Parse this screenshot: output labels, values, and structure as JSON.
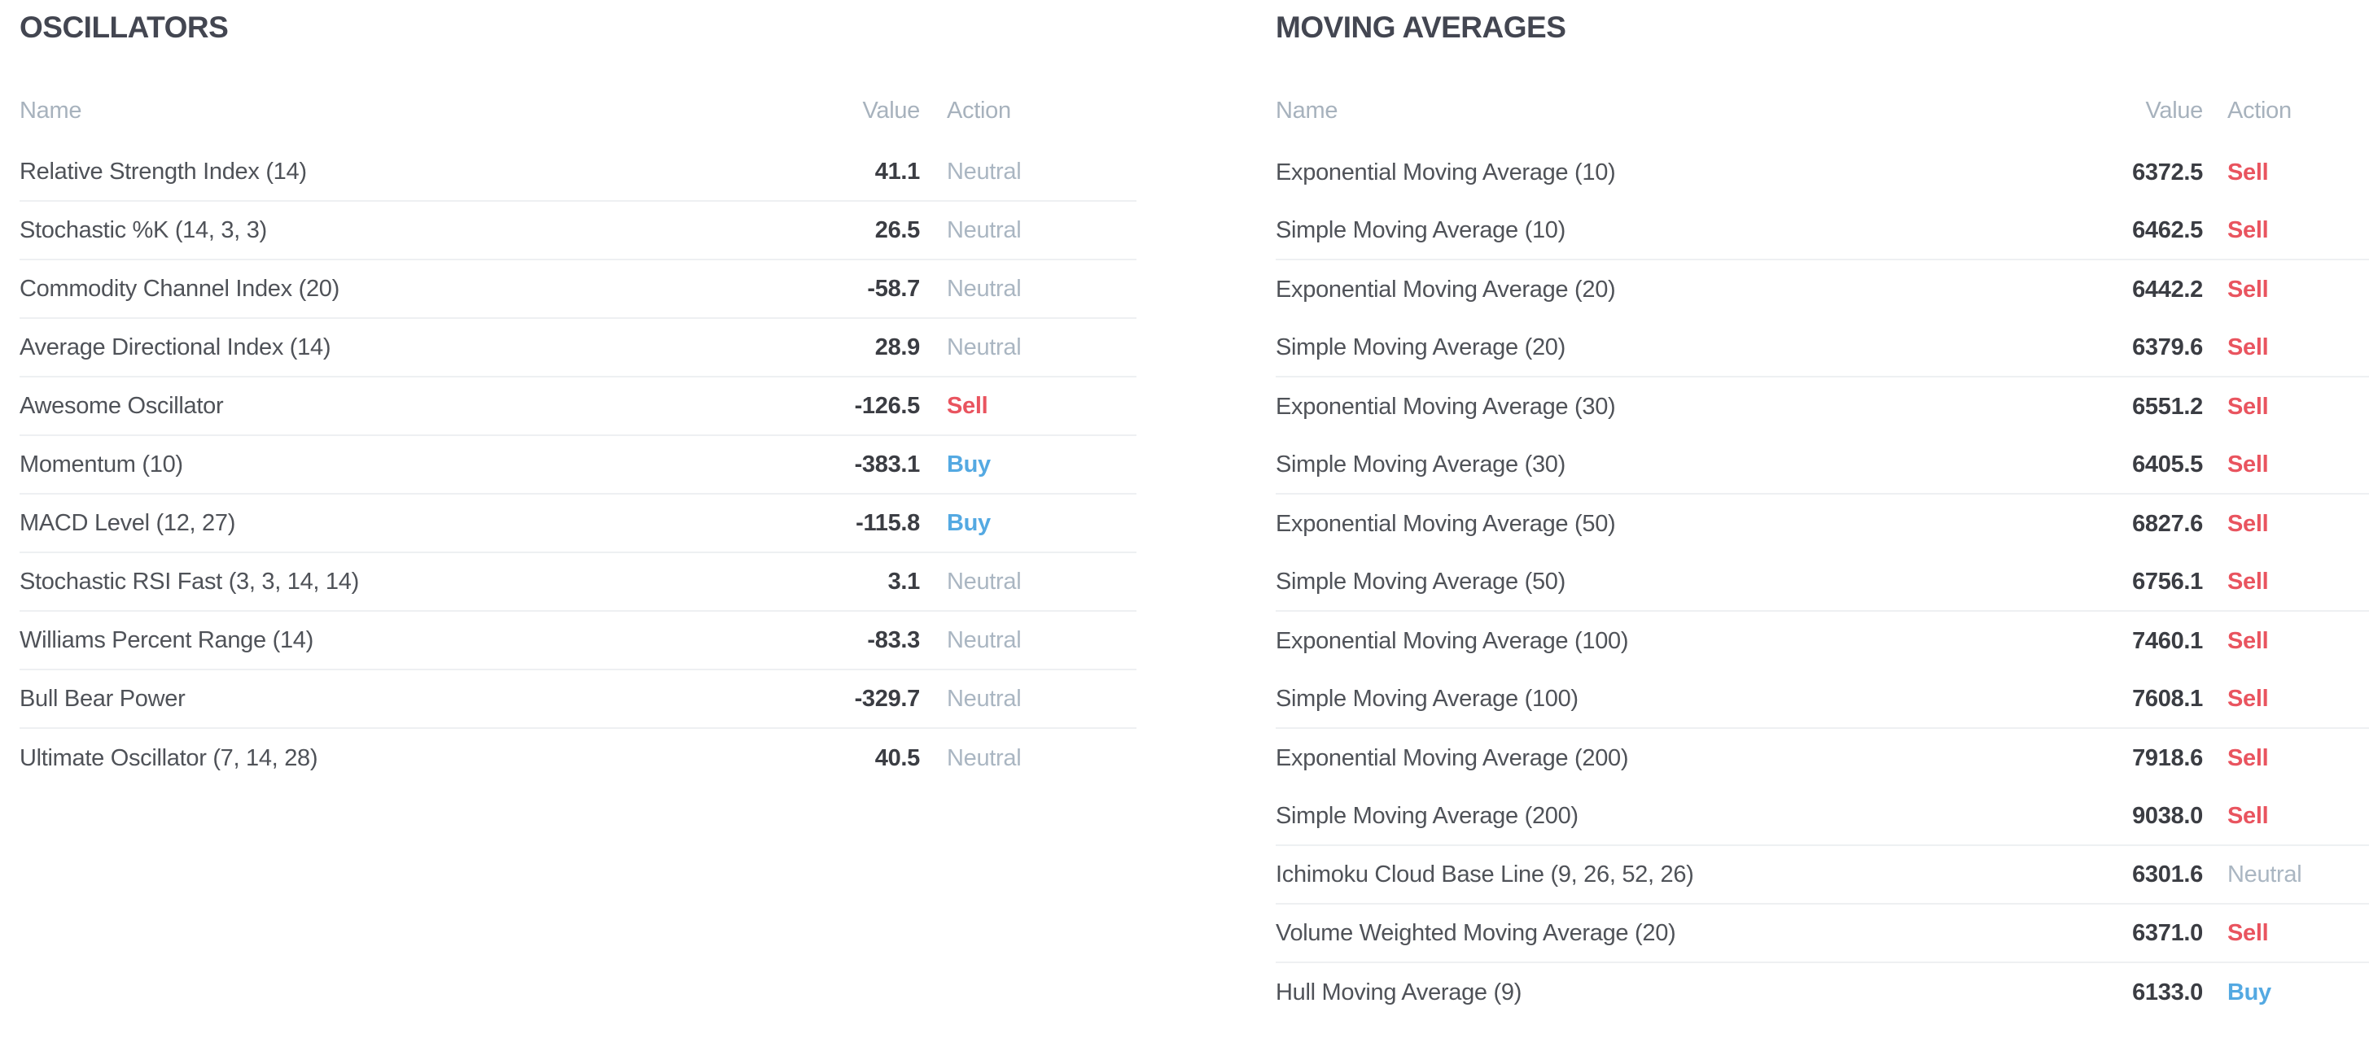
{
  "colors": {
    "background": "#ffffff",
    "title_text": "#434651",
    "indicator_name_text": "#4f5258",
    "value_text": "#3b3d43",
    "column_header_text": "#a7b2bd",
    "action_neutral": "#aab6c2",
    "action_sell": "#e9545f",
    "action_buy": "#54a9e2",
    "row_divider": "#eef0f2"
  },
  "tables": [
    {
      "id": "oscillators",
      "title": "OSCILLATORS",
      "columns": {
        "name": "Name",
        "value": "Value",
        "action": "Action"
      },
      "rows": [
        {
          "name": "Relative Strength Index (14)",
          "value": "41.1",
          "action": "Neutral"
        },
        {
          "name": "Stochastic %K (14, 3, 3)",
          "value": "26.5",
          "action": "Neutral"
        },
        {
          "name": "Commodity Channel Index (20)",
          "value": "-58.7",
          "action": "Neutral"
        },
        {
          "name": "Average Directional Index (14)",
          "value": "28.9",
          "action": "Neutral"
        },
        {
          "name": "Awesome Oscillator",
          "value": "-126.5",
          "action": "Sell"
        },
        {
          "name": "Momentum (10)",
          "value": "-383.1",
          "action": "Buy"
        },
        {
          "name": "MACD Level (12, 27)",
          "value": "-115.8",
          "action": "Buy"
        },
        {
          "name": "Stochastic RSI Fast (3, 3, 14, 14)",
          "value": "3.1",
          "action": "Neutral"
        },
        {
          "name": "Williams Percent Range (14)",
          "value": "-83.3",
          "action": "Neutral"
        },
        {
          "name": "Bull Bear Power",
          "value": "-329.7",
          "action": "Neutral"
        },
        {
          "name": "Ultimate Oscillator (7, 14, 28)",
          "value": "40.5",
          "action": "Neutral"
        }
      ],
      "divider_after": [
        0,
        1,
        2,
        3,
        4,
        5,
        6,
        7,
        8,
        9
      ]
    },
    {
      "id": "moving-averages",
      "title": "MOVING AVERAGES",
      "columns": {
        "name": "Name",
        "value": "Value",
        "action": "Action"
      },
      "rows": [
        {
          "name": "Exponential Moving Average (10)",
          "value": "6372.5",
          "action": "Sell"
        },
        {
          "name": "Simple Moving Average (10)",
          "value": "6462.5",
          "action": "Sell"
        },
        {
          "name": "Exponential Moving Average (20)",
          "value": "6442.2",
          "action": "Sell"
        },
        {
          "name": "Simple Moving Average (20)",
          "value": "6379.6",
          "action": "Sell"
        },
        {
          "name": "Exponential Moving Average (30)",
          "value": "6551.2",
          "action": "Sell"
        },
        {
          "name": "Simple Moving Average (30)",
          "value": "6405.5",
          "action": "Sell"
        },
        {
          "name": "Exponential Moving Average (50)",
          "value": "6827.6",
          "action": "Sell"
        },
        {
          "name": "Simple Moving Average (50)",
          "value": "6756.1",
          "action": "Sell"
        },
        {
          "name": "Exponential Moving Average (100)",
          "value": "7460.1",
          "action": "Sell"
        },
        {
          "name": "Simple Moving Average (100)",
          "value": "7608.1",
          "action": "Sell"
        },
        {
          "name": "Exponential Moving Average (200)",
          "value": "7918.6",
          "action": "Sell"
        },
        {
          "name": "Simple Moving Average (200)",
          "value": "9038.0",
          "action": "Sell"
        },
        {
          "name": "Ichimoku Cloud Base Line (9, 26, 52, 26)",
          "value": "6301.6",
          "action": "Neutral"
        },
        {
          "name": "Volume Weighted Moving Average (20)",
          "value": "6371.0",
          "action": "Sell"
        },
        {
          "name": "Hull Moving Average (9)",
          "value": "6133.0",
          "action": "Buy"
        }
      ],
      "divider_after": [
        1,
        3,
        5,
        7,
        9,
        11,
        12,
        13
      ]
    }
  ]
}
